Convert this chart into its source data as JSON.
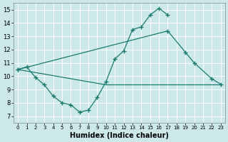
{
  "xlabel": "Humidex (Indice chaleur)",
  "xlim": [
    -0.5,
    23.5
  ],
  "ylim": [
    6.5,
    15.5
  ],
  "yticks": [
    7,
    8,
    9,
    10,
    11,
    12,
    13,
    14,
    15
  ],
  "xticks": [
    0,
    1,
    2,
    3,
    4,
    5,
    6,
    7,
    8,
    9,
    10,
    11,
    12,
    13,
    14,
    15,
    16,
    17,
    18,
    19,
    20,
    21,
    22,
    23
  ],
  "bg_color": "#cce8e8",
  "line_color": "#1a7a6e",
  "grid_color": "#ffffff",
  "line1_x": [
    0,
    1,
    2,
    3,
    4,
    5,
    6,
    7,
    8,
    9,
    10,
    11,
    12,
    13,
    14,
    15,
    16,
    17
  ],
  "line1_y": [
    10.5,
    10.7,
    9.9,
    9.35,
    8.5,
    8.0,
    7.85,
    7.3,
    7.45,
    8.4,
    9.6,
    11.3,
    11.9,
    13.5,
    13.7,
    14.6,
    15.1,
    14.6
  ],
  "line2_x": [
    0,
    17,
    19,
    20,
    22,
    23
  ],
  "line2_y": [
    10.5,
    13.4,
    11.8,
    11.0,
    9.8,
    9.4
  ],
  "line3_x": [
    0,
    10,
    18,
    23
  ],
  "line3_y": [
    10.5,
    9.35,
    9.35,
    9.35
  ]
}
